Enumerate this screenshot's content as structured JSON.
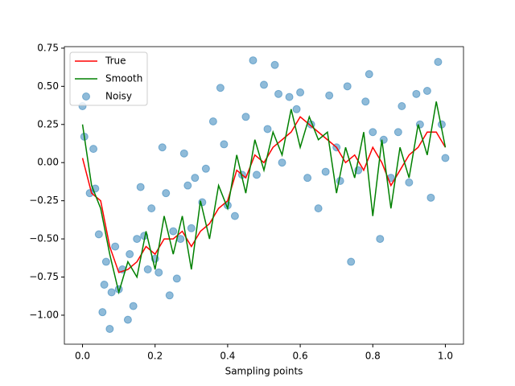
{
  "chart_data": {
    "type": "line-scatter",
    "xlabel": "Sampling points",
    "xlim": [
      -0.05,
      1.05
    ],
    "ylim": [
      -1.19,
      0.76
    ],
    "xticks": [
      {
        "value": 0,
        "label": "0.0"
      },
      {
        "value": 0.2,
        "label": "0.2"
      },
      {
        "value": 0.4,
        "label": "0.4"
      },
      {
        "value": 0.6,
        "label": "0.6"
      },
      {
        "value": 0.8,
        "label": "0.8"
      },
      {
        "value": 1.0,
        "label": "1.0"
      }
    ],
    "yticks": [
      {
        "value": -1.0,
        "label": "−1.00"
      },
      {
        "value": -0.75,
        "label": "−0.75"
      },
      {
        "value": -0.5,
        "label": "−0.50"
      },
      {
        "value": -0.25,
        "label": "−0.25"
      },
      {
        "value": 0,
        "label": "0.00"
      },
      {
        "value": 0.25,
        "label": "0.25"
      },
      {
        "value": 0.5,
        "label": "0.50"
      },
      {
        "value": 0.75,
        "label": "0.75"
      }
    ],
    "legend": "upper left",
    "series": [
      {
        "name": "True",
        "kind": "line",
        "color": "#ff0000",
        "x": [
          0,
          0.025,
          0.05,
          0.075,
          0.1,
          0.125,
          0.15,
          0.175,
          0.2,
          0.225,
          0.25,
          0.275,
          0.3,
          0.325,
          0.35,
          0.375,
          0.4,
          0.425,
          0.45,
          0.475,
          0.5,
          0.525,
          0.55,
          0.575,
          0.6,
          0.625,
          0.65,
          0.675,
          0.7,
          0.725,
          0.75,
          0.775,
          0.8,
          0.825,
          0.85,
          0.875,
          0.9,
          0.925,
          0.95,
          0.975,
          1.0
        ],
        "values": [
          0.03,
          -0.2,
          -0.25,
          -0.55,
          -0.72,
          -0.7,
          -0.65,
          -0.55,
          -0.6,
          -0.5,
          -0.5,
          -0.45,
          -0.55,
          -0.45,
          -0.4,
          -0.3,
          -0.25,
          -0.05,
          -0.1,
          0.05,
          0.0,
          0.1,
          0.15,
          0.2,
          0.3,
          0.25,
          0.2,
          0.15,
          0.1,
          0.0,
          0.05,
          -0.05,
          0.1,
          0.0,
          -0.15,
          -0.05,
          0.05,
          0.1,
          0.2,
          0.2,
          0.1
        ]
      },
      {
        "name": "Smooth",
        "kind": "line",
        "color": "#008000",
        "x": [
          0,
          0.025,
          0.05,
          0.075,
          0.1,
          0.125,
          0.15,
          0.175,
          0.2,
          0.225,
          0.25,
          0.275,
          0.3,
          0.325,
          0.35,
          0.375,
          0.4,
          0.425,
          0.45,
          0.475,
          0.5,
          0.525,
          0.55,
          0.575,
          0.6,
          0.625,
          0.65,
          0.675,
          0.7,
          0.725,
          0.75,
          0.775,
          0.8,
          0.825,
          0.85,
          0.875,
          0.9,
          0.925,
          0.95,
          0.975,
          1.0
        ],
        "values": [
          0.25,
          -0.15,
          -0.3,
          -0.6,
          -0.85,
          -0.65,
          -0.75,
          -0.45,
          -0.7,
          -0.35,
          -0.6,
          -0.35,
          -0.7,
          -0.25,
          -0.5,
          -0.15,
          -0.3,
          0.05,
          -0.2,
          0.15,
          -0.05,
          0.2,
          0.05,
          0.35,
          0.1,
          0.3,
          0.15,
          0.2,
          -0.2,
          0.1,
          -0.1,
          0.2,
          -0.35,
          0.15,
          -0.3,
          0.1,
          -0.1,
          0.25,
          0.05,
          0.4,
          0.1
        ]
      },
      {
        "name": "Noisy",
        "kind": "scatter",
        "color": "#1f77b4",
        "x": [
          0,
          0.005,
          0.02,
          0.03,
          0.035,
          0.045,
          0.055,
          0.06,
          0.065,
          0.075,
          0.08,
          0.09,
          0.1,
          0.11,
          0.125,
          0.13,
          0.14,
          0.15,
          0.16,
          0.17,
          0.18,
          0.19,
          0.2,
          0.21,
          0.22,
          0.23,
          0.24,
          0.25,
          0.26,
          0.27,
          0.28,
          0.29,
          0.3,
          0.31,
          0.33,
          0.34,
          0.36,
          0.38,
          0.39,
          0.4,
          0.42,
          0.44,
          0.45,
          0.47,
          0.48,
          0.5,
          0.51,
          0.53,
          0.54,
          0.55,
          0.57,
          0.59,
          0.6,
          0.62,
          0.63,
          0.65,
          0.67,
          0.68,
          0.7,
          0.71,
          0.73,
          0.74,
          0.76,
          0.78,
          0.79,
          0.8,
          0.82,
          0.83,
          0.85,
          0.87,
          0.88,
          0.9,
          0.92,
          0.93,
          0.95,
          0.96,
          0.98,
          0.99,
          1.0
        ],
        "values": [
          0.37,
          0.17,
          -0.2,
          0.09,
          -0.17,
          -0.47,
          -0.98,
          -0.8,
          -0.65,
          -1.09,
          -0.85,
          -0.55,
          -0.83,
          -0.7,
          -1.03,
          -0.6,
          -0.94,
          -0.5,
          -0.16,
          -0.48,
          -0.7,
          -0.3,
          -0.63,
          -0.72,
          0.1,
          -0.2,
          -0.87,
          -0.45,
          -0.76,
          -0.5,
          0.06,
          -0.15,
          -0.43,
          -0.1,
          -0.26,
          -0.04,
          0.27,
          0.49,
          0.12,
          -0.28,
          -0.35,
          -0.08,
          0.3,
          0.67,
          -0.08,
          0.51,
          0.22,
          0.64,
          0.45,
          0.0,
          0.43,
          0.35,
          0.46,
          -0.1,
          0.25,
          -0.3,
          -0.06,
          0.44,
          0.1,
          -0.12,
          0.5,
          -0.65,
          -0.05,
          0.4,
          0.58,
          0.2,
          -0.5,
          0.15,
          -0.1,
          0.2,
          0.37,
          -0.13,
          0.45,
          0.25,
          0.47,
          -0.23,
          0.66,
          0.25,
          0.03
        ]
      }
    ]
  }
}
